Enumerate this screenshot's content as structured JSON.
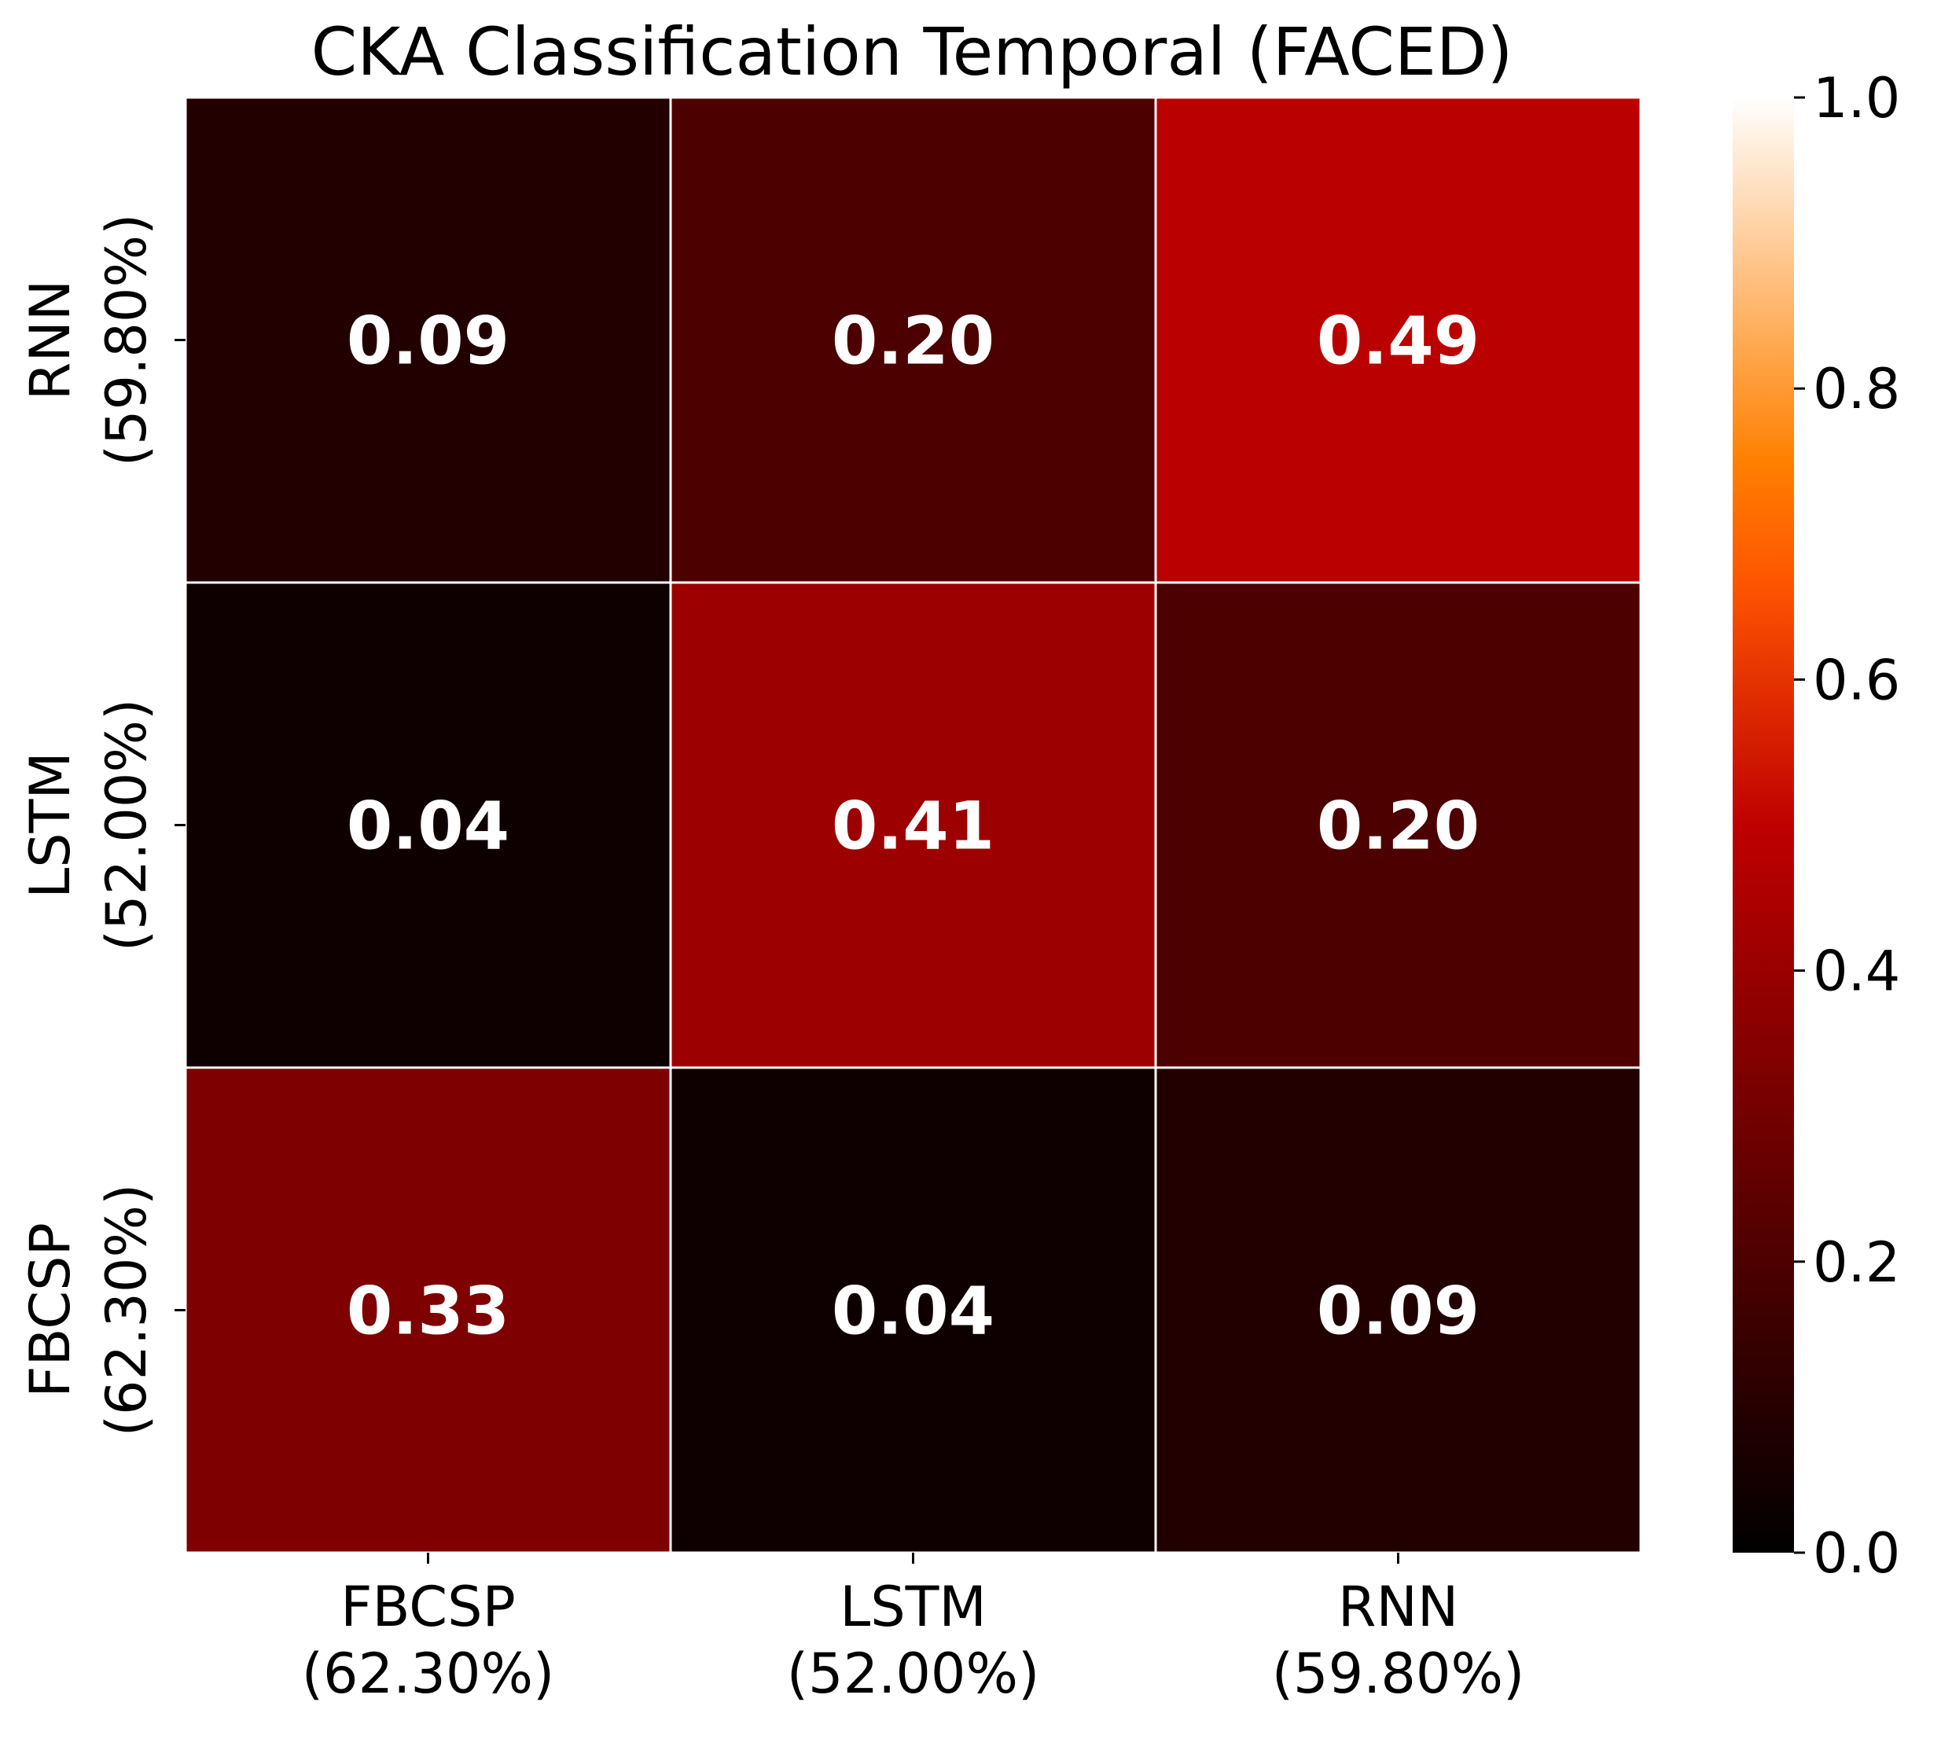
{
  "chart_data": {
    "type": "heatmap",
    "title": "CKA Classification Temporal (FACED)",
    "xlabel": "",
    "ylabel": "",
    "x_categories": [
      {
        "name": "FBCSP",
        "accuracy": "(62.30%)"
      },
      {
        "name": "LSTM",
        "accuracy": "(52.00%)"
      },
      {
        "name": "RNN",
        "accuracy": "(59.80%)"
      }
    ],
    "y_categories": [
      {
        "name": "RNN",
        "accuracy": "(59.80%)"
      },
      {
        "name": "LSTM",
        "accuracy": "(52.00%)"
      },
      {
        "name": "FBCSP",
        "accuracy": "(62.30%)"
      }
    ],
    "values": [
      [
        0.09,
        0.2,
        0.49
      ],
      [
        0.04,
        0.41,
        0.2
      ],
      [
        0.33,
        0.04,
        0.09
      ]
    ],
    "value_labels": [
      [
        "0.09",
        "0.20",
        "0.49"
      ],
      [
        "0.04",
        "0.41",
        "0.20"
      ],
      [
        "0.33",
        "0.04",
        "0.09"
      ]
    ],
    "colormap": "gist_heat",
    "colorbar": {
      "range": [
        0.0,
        1.0
      ],
      "ticks": [
        0.0,
        0.2,
        0.4,
        0.6,
        0.8,
        1.0
      ],
      "tick_labels": [
        "0.0",
        "0.2",
        "0.4",
        "0.6",
        "0.8",
        "1.0"
      ]
    },
    "annotation_color": "#ffffff",
    "cell_border_color": "#ffffff"
  }
}
